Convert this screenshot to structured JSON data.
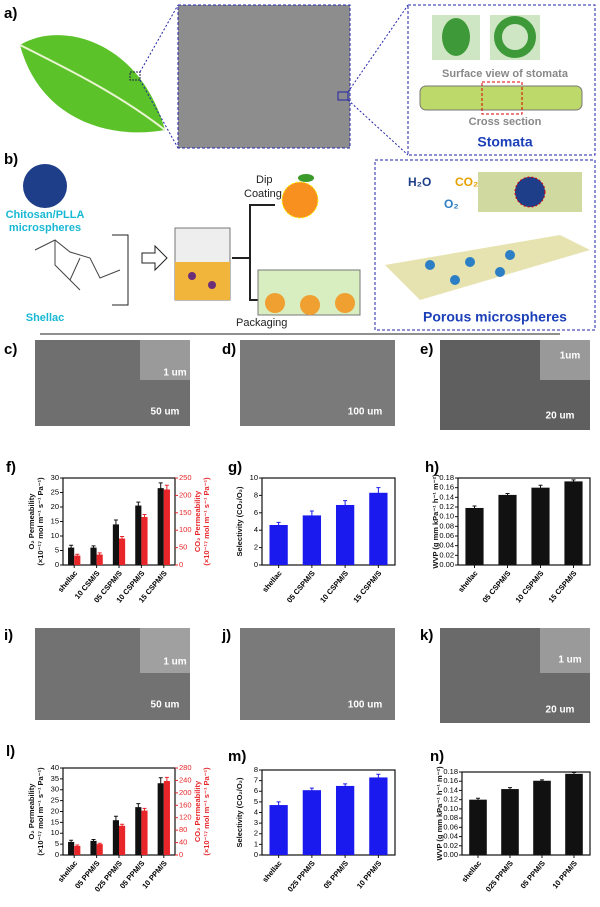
{
  "panel_labels": {
    "a": "a)",
    "b": "b)",
    "c": "c)",
    "d": "d)",
    "e": "e)",
    "i": "i)",
    "j": "j)",
    "k": "k)"
  },
  "panel_a": {
    "surface": "Surface view of stomata",
    "cross": "Cross section",
    "stomata": "Stomata"
  },
  "panel_b": {
    "chitosan": [
      "Chitosan/PLLA",
      "microspheres"
    ],
    "shellac": "Shellac",
    "dip": [
      "Dip",
      "Coating"
    ],
    "packaging": "Packaging",
    "h2o": "H₂O",
    "co2": "CO₂",
    "o2": "O₂",
    "porous": "Porous microspheres"
  },
  "scale_bars": {
    "c_inset": "1 um",
    "c": "50 um",
    "d": "100 um",
    "e_inset": "1um",
    "e": "20 um",
    "i_inset": "1 um",
    "i": "50 um",
    "j": "100 um",
    "k_inset": "1 um",
    "k": "20 um"
  },
  "chart_data": [
    {
      "type": "bar",
      "title": "f)",
      "ylabel": [
        "O₂ Permeability",
        "(×10⁻¹⁷ mol m⁻¹ s⁻¹ Pa⁻¹)"
      ],
      "y2label": [
        "CO₂ Permeability",
        "(×10⁻¹⁷ mol m⁻¹ s⁻¹ Pa⁻¹)"
      ],
      "categories": [
        "shellac",
        "10 CSM/S",
        "05 CSPM/S",
        "10 CSPM/S",
        "15 CSPM/S"
      ],
      "series": [
        {
          "name": "O₂",
          "color": "#111111",
          "values": [
            6,
            6,
            14,
            20.5,
            26.5
          ],
          "errors": [
            0.8,
            0.6,
            1.5,
            1.2,
            1.8
          ]
        },
        {
          "name": "CO₂",
          "color": "#e8262a",
          "axis": "y2",
          "values": [
            27,
            30,
            76,
            138,
            217
          ],
          "errors": [
            4,
            5,
            6,
            7,
            12
          ]
        }
      ],
      "ylim": [
        0,
        30
      ],
      "yticks": [
        0,
        5,
        10,
        15,
        20,
        25,
        30
      ],
      "y2lim": [
        0,
        250
      ],
      "y2ticks": [
        0,
        50,
        100,
        150,
        200,
        250
      ]
    },
    {
      "type": "bar",
      "title": "g)",
      "ylabel": [
        "Selectivity (CO₂/O₂)"
      ],
      "categories": [
        "shellac",
        "05 CSPM/S",
        "10 CSPM/S",
        "15 CSPM/S"
      ],
      "series": [
        {
          "name": "Selectivity",
          "color": "#1a1aee",
          "values": [
            4.6,
            5.7,
            6.9,
            8.3
          ],
          "errors": [
            0.3,
            0.5,
            0.5,
            0.6
          ]
        }
      ],
      "ylim": [
        0,
        10
      ],
      "yticks": [
        0,
        2,
        4,
        6,
        8,
        10
      ]
    },
    {
      "type": "bar",
      "title": "h)",
      "ylabel": [
        "WVP (g mm kPa⁻¹ h⁻¹ m⁻²)"
      ],
      "categories": [
        "shellac",
        "05 CSPM/S",
        "10 CSPM/S",
        "15 CSPM/S"
      ],
      "series": [
        {
          "name": "WVP",
          "color": "#111111",
          "values": [
            0.118,
            0.145,
            0.16,
            0.173
          ],
          "errors": [
            0.004,
            0.003,
            0.005,
            0.003
          ]
        }
      ],
      "ylim": [
        0,
        0.18
      ],
      "yticks": [
        {
          "value": 0,
          "label": "0.00"
        },
        {
          "value": 0.02,
          "label": "0.02"
        },
        {
          "value": 0.04,
          "label": "0.04"
        },
        {
          "value": 0.06,
          "label": "0.06"
        },
        {
          "value": 0.08,
          "label": "0.08"
        },
        {
          "value": 0.1,
          "label": "0.10"
        },
        {
          "value": 0.12,
          "label": "0.12"
        },
        {
          "value": 0.14,
          "label": "0.14"
        },
        {
          "value": 0.16,
          "label": "0.16"
        },
        {
          "value": 0.18,
          "label": "0.18"
        }
      ]
    },
    {
      "type": "bar",
      "title": "l)",
      "ylabel": [
        "O₂ Permeability",
        "(×10⁻¹⁷ mol m⁻¹ s⁻¹ Pa⁻¹)"
      ],
      "y2label": [
        "CO₂ Permeability",
        "(×10⁻¹⁷ mol m⁻¹ s⁻¹ Pa⁻¹)"
      ],
      "categories": [
        "shellac",
        "05 PPM/S",
        "025 PPM/S",
        "05 PPM/S",
        "10 PPM/S"
      ],
      "series": [
        {
          "name": "O₂",
          "color": "#111111",
          "values": [
            6,
            6.5,
            16,
            22,
            33
          ],
          "errors": [
            0.8,
            0.6,
            1.8,
            1.6,
            2.5
          ]
        },
        {
          "name": "CO₂",
          "color": "#e8262a",
          "axis": "y2",
          "values": [
            29,
            35,
            94,
            143,
            238
          ],
          "errors": [
            3,
            3,
            5,
            7,
            12
          ]
        }
      ],
      "ylim": [
        0,
        40
      ],
      "yticks": [
        0,
        5,
        10,
        15,
        20,
        25,
        30,
        35,
        40
      ],
      "y2lim": [
        0,
        280
      ],
      "y2ticks": [
        0,
        40,
        80,
        120,
        160,
        200,
        240,
        280
      ]
    },
    {
      "type": "bar",
      "title": "m)",
      "ylabel": [
        "Selectivity (CO₂/O₂)"
      ],
      "categories": [
        "shellac",
        "025 PPM/S",
        "05 PPM/S",
        "10 PPM/S"
      ],
      "series": [
        {
          "name": "Selectivity",
          "color": "#1a1aee",
          "values": [
            4.7,
            6.1,
            6.5,
            7.3
          ],
          "errors": [
            0.3,
            0.2,
            0.2,
            0.3
          ]
        }
      ],
      "ylim": [
        0,
        8
      ],
      "yticks": [
        0,
        1,
        2,
        3,
        4,
        5,
        6,
        7,
        8
      ]
    },
    {
      "type": "bar",
      "title": "n)",
      "ylabel": [
        "WVP (g mm kPa⁻¹ h⁻¹ m⁻²)"
      ],
      "categories": [
        "shellac",
        "025 PPM/S",
        "05 PPM/S",
        "10 PPM/S"
      ],
      "series": [
        {
          "name": "WVP",
          "color": "#111111",
          "values": [
            0.12,
            0.143,
            0.161,
            0.176
          ],
          "errors": [
            0.003,
            0.003,
            0.002,
            0.003
          ]
        }
      ],
      "ylim": [
        0,
        0.18
      ],
      "yticks": [
        {
          "value": 0,
          "label": "0.00"
        },
        {
          "value": 0.02,
          "label": "0.02"
        },
        {
          "value": 0.04,
          "label": "0.04"
        },
        {
          "value": 0.06,
          "label": "0.06"
        },
        {
          "value": 0.08,
          "label": "0.08"
        },
        {
          "value": 0.1,
          "label": "0.10"
        },
        {
          "value": 0.12,
          "label": "0.12"
        },
        {
          "value": 0.14,
          "label": "0.14"
        },
        {
          "value": 0.16,
          "label": "0.16"
        },
        {
          "value": 0.18,
          "label": "0.18"
        }
      ]
    }
  ]
}
